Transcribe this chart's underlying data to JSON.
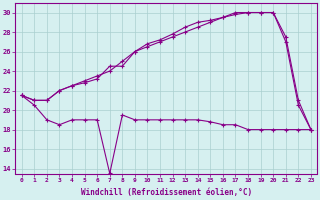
{
  "xlabel": "Windchill (Refroidissement éolien,°C)",
  "background_color": "#d6f0f0",
  "line_color": "#880088",
  "xlim": [
    -0.5,
    23.5
  ],
  "ylim": [
    13.5,
    31.0
  ],
  "yticks": [
    14,
    16,
    18,
    20,
    22,
    24,
    26,
    28,
    30
  ],
  "xticks": [
    0,
    1,
    2,
    3,
    4,
    5,
    6,
    7,
    8,
    9,
    10,
    11,
    12,
    13,
    14,
    15,
    16,
    17,
    18,
    19,
    20,
    21,
    22,
    23
  ],
  "line1_x": [
    0,
    1,
    2,
    3,
    4,
    5,
    6,
    7,
    8,
    9,
    10,
    11,
    12,
    13,
    14,
    15,
    16,
    17,
    18,
    19,
    20,
    21,
    22,
    23
  ],
  "line1_y": [
    21.5,
    21.0,
    21.0,
    22.0,
    22.5,
    22.8,
    23.2,
    24.5,
    24.5,
    26.0,
    26.5,
    27.0,
    27.5,
    28.0,
    28.5,
    29.0,
    29.5,
    30.0,
    30.0,
    30.0,
    30.0,
    27.5,
    21.0,
    18.0
  ],
  "line2_x": [
    0,
    1,
    2,
    3,
    4,
    5,
    6,
    7,
    8,
    9,
    10,
    11,
    12,
    13,
    14,
    15,
    16,
    17,
    18,
    19,
    20,
    21,
    22,
    23
  ],
  "line2_y": [
    21.5,
    21.0,
    21.0,
    22.0,
    22.5,
    23.0,
    23.5,
    24.0,
    25.0,
    26.0,
    26.8,
    27.2,
    27.8,
    28.5,
    29.0,
    29.2,
    29.5,
    29.8,
    30.0,
    30.0,
    30.0,
    27.0,
    20.5,
    18.0
  ],
  "line3_x": [
    0,
    1,
    2,
    3,
    4,
    5,
    6,
    7,
    8,
    9,
    10,
    11,
    12,
    13,
    14,
    15,
    16,
    17,
    18,
    19,
    20,
    21,
    22,
    23
  ],
  "line3_y": [
    21.5,
    20.5,
    19.0,
    18.5,
    19.0,
    19.0,
    19.0,
    13.5,
    19.5,
    19.0,
    19.0,
    19.0,
    19.0,
    19.0,
    19.0,
    18.8,
    18.5,
    18.5,
    18.0,
    18.0,
    18.0,
    18.0,
    18.0,
    18.0
  ]
}
